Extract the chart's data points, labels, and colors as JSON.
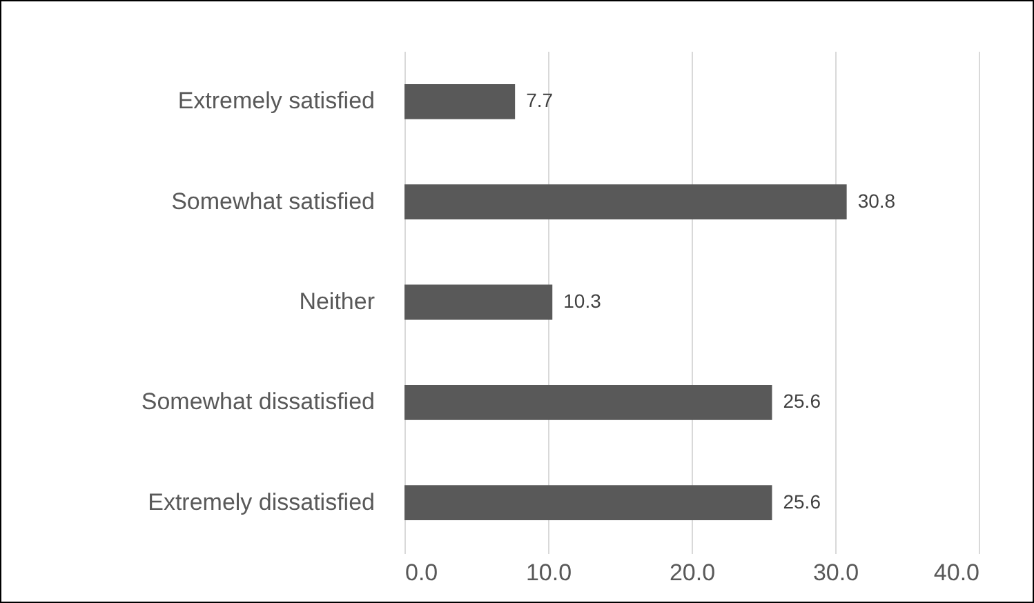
{
  "chart_data": {
    "type": "bar",
    "orientation": "horizontal",
    "categories": [
      "Extremely satisfied",
      "Somewhat satisfied",
      "Neither",
      "Somewhat dissatisfied",
      "Extremely dissatisfied"
    ],
    "values": [
      7.7,
      30.8,
      10.3,
      25.6,
      25.6
    ],
    "color": "#595959",
    "xlim": [
      0,
      40
    ],
    "xticks": [
      {
        "value": 0,
        "label": "0.0"
      },
      {
        "value": 10,
        "label": "10.0"
      },
      {
        "value": 20,
        "label": "20.0"
      },
      {
        "value": 30,
        "label": "30.0"
      },
      {
        "value": 40,
        "label": "40.0"
      }
    ],
    "grid": "x",
    "data_labels": true
  }
}
